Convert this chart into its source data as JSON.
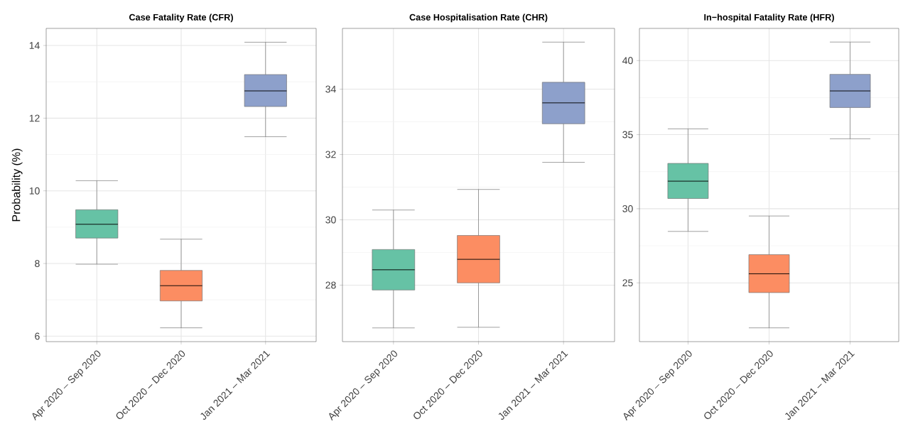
{
  "chart_data": [
    {
      "type": "box",
      "title": "Case Fatality Rate (CFR)",
      "ylabel": "Probability (%)",
      "categories": [
        "Apr 2020 – Sep 2020",
        "Oct 2020 – Dec 2020",
        "Jan 2021 – Mar 2021"
      ],
      "colors": [
        "#66c2a5",
        "#fc8d62",
        "#8da0cb"
      ],
      "boxes": [
        {
          "low": 7.98,
          "q1": 8.7,
          "median": 9.08,
          "q3": 9.48,
          "high": 10.28
        },
        {
          "low": 6.23,
          "q1": 6.97,
          "median": 7.39,
          "q3": 7.81,
          "high": 8.67
        },
        {
          "low": 11.49,
          "q1": 12.32,
          "median": 12.75,
          "q3": 13.2,
          "high": 14.09
        }
      ],
      "ylim": [
        5.85,
        14.47
      ],
      "yticks": [
        6,
        8,
        10,
        12,
        14
      ],
      "grid": true
    },
    {
      "type": "box",
      "title": "Case Hospitalisation Rate (CHR)",
      "categories": [
        "Apr 2020 – Sep 2020",
        "Oct 2020 – Dec 2020",
        "Jan 2021 – Mar 2021"
      ],
      "colors": [
        "#66c2a5",
        "#fc8d62",
        "#8da0cb"
      ],
      "boxes": [
        {
          "low": 26.69,
          "q1": 27.85,
          "median": 28.47,
          "q3": 29.09,
          "high": 30.3
        },
        {
          "low": 26.71,
          "q1": 28.07,
          "median": 28.79,
          "q3": 29.52,
          "high": 30.93
        },
        {
          "low": 31.76,
          "q1": 32.94,
          "median": 33.58,
          "q3": 34.21,
          "high": 35.44
        }
      ],
      "ylim": [
        26.27,
        35.86
      ],
      "yticks": [
        28,
        30,
        32,
        34
      ],
      "grid": true
    },
    {
      "type": "box",
      "title": "In−hospital Fatality Rate (HFR)",
      "categories": [
        "Apr 2020 – Sep 2020",
        "Oct 2020 – Dec 2020",
        "Jan 2021 – Mar 2021"
      ],
      "colors": [
        "#66c2a5",
        "#fc8d62",
        "#8da0cb"
      ],
      "boxes": [
        {
          "low": 28.47,
          "q1": 30.69,
          "median": 31.86,
          "q3": 33.06,
          "high": 35.39
        },
        {
          "low": 21.96,
          "q1": 24.34,
          "median": 25.61,
          "q3": 26.9,
          "high": 29.51
        },
        {
          "low": 34.72,
          "q1": 36.83,
          "median": 37.95,
          "q3": 39.07,
          "high": 41.25
        }
      ],
      "ylim": [
        21.03,
        42.17
      ],
      "yticks": [
        25,
        30,
        35,
        40
      ],
      "grid": true
    }
  ]
}
